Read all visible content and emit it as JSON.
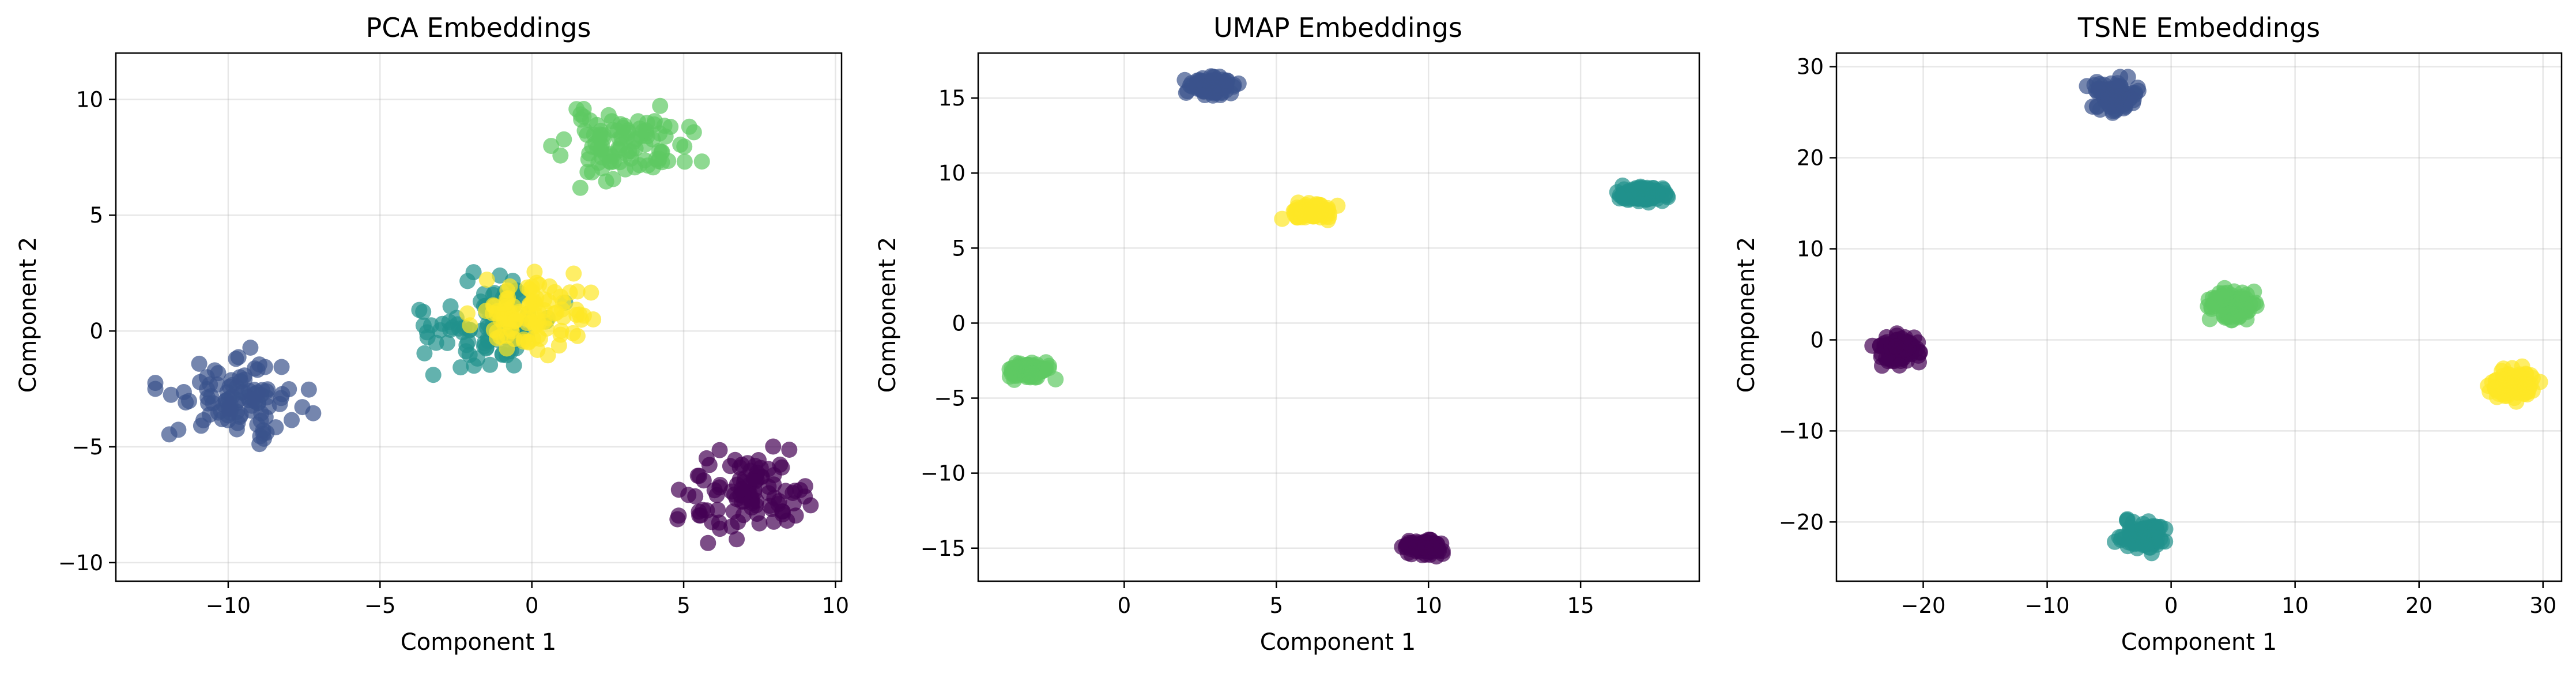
{
  "palette": {
    "cluster0": "#440154",
    "cluster1": "#3b528b",
    "cluster2": "#21918c",
    "cluster3": "#5ec962",
    "cluster4": "#fde725"
  },
  "chart_data": [
    {
      "type": "scatter",
      "title": "PCA Embeddings",
      "xlabel": "Component 1",
      "ylabel": "Component 2",
      "xlim": [
        -13.7,
        10.2
      ],
      "ylim": [
        -10.8,
        12.0
      ],
      "xticks": [
        -10,
        -5,
        0,
        5,
        10
      ],
      "yticks": [
        -10,
        -5,
        0,
        5,
        10
      ],
      "grid": true,
      "legend": "none",
      "marker_opacity": 0.7,
      "clusters": [
        {
          "color_key": "cluster3",
          "center": [
            3.0,
            8.0
          ],
          "spread": [
            1.0,
            0.7
          ],
          "count": 100,
          "seed": 11
        },
        {
          "color_key": "cluster1",
          "center": [
            -9.8,
            -2.8
          ],
          "spread": [
            1.0,
            0.8
          ],
          "count": 100,
          "seed": 22
        },
        {
          "color_key": "cluster2",
          "center": [
            -1.5,
            0.2
          ],
          "spread": [
            1.0,
            0.9
          ],
          "count": 100,
          "seed": 33
        },
        {
          "color_key": "cluster4",
          "center": [
            -0.2,
            0.6
          ],
          "spread": [
            1.0,
            0.8
          ],
          "count": 100,
          "seed": 44
        },
        {
          "color_key": "cluster0",
          "center": [
            7.0,
            -7.0
          ],
          "spread": [
            0.9,
            0.9
          ],
          "count": 100,
          "seed": 55
        }
      ]
    },
    {
      "type": "scatter",
      "title": "UMAP Embeddings",
      "xlabel": "Component 1",
      "ylabel": "Component 2",
      "xlim": [
        -4.8,
        18.9
      ],
      "ylim": [
        -17.2,
        18.0
      ],
      "xticks": [
        0,
        5,
        10,
        15
      ],
      "yticks": [
        -15,
        -10,
        -5,
        0,
        5,
        10,
        15
      ],
      "grid": true,
      "legend": "none",
      "marker_opacity": 0.7,
      "clusters": [
        {
          "color_key": "cluster1",
          "center": [
            2.9,
            15.8
          ],
          "spread": [
            0.35,
            0.25
          ],
          "count": 100,
          "seed": 66
        },
        {
          "color_key": "cluster4",
          "center": [
            6.1,
            7.4
          ],
          "spread": [
            0.35,
            0.25
          ],
          "count": 100,
          "seed": 77
        },
        {
          "color_key": "cluster2",
          "center": [
            17.1,
            8.6
          ],
          "spread": [
            0.35,
            0.25
          ],
          "count": 100,
          "seed": 88
        },
        {
          "color_key": "cluster3",
          "center": [
            -3.1,
            -3.2
          ],
          "spread": [
            0.35,
            0.25
          ],
          "count": 100,
          "seed": 99
        },
        {
          "color_key": "cluster0",
          "center": [
            9.9,
            -14.9
          ],
          "spread": [
            0.35,
            0.25
          ],
          "count": 100,
          "seed": 111
        }
      ]
    },
    {
      "type": "scatter",
      "title": "TSNE Embeddings",
      "xlabel": "Component 1",
      "ylabel": "Component 2",
      "xlim": [
        -27.0,
        31.5
      ],
      "ylim": [
        -26.5,
        31.5
      ],
      "xticks": [
        -20,
        -10,
        0,
        10,
        20,
        30
      ],
      "yticks": [
        -20,
        -10,
        0,
        10,
        20,
        30
      ],
      "grid": true,
      "legend": "none",
      "marker_opacity": 0.7,
      "clusters": [
        {
          "color_key": "cluster1",
          "center": [
            -4.5,
            26.8
          ],
          "spread": [
            0.9,
            0.8
          ],
          "count": 100,
          "seed": 122
        },
        {
          "color_key": "cluster3",
          "center": [
            5.0,
            3.8
          ],
          "spread": [
            0.9,
            0.8
          ],
          "count": 100,
          "seed": 133
        },
        {
          "color_key": "cluster0",
          "center": [
            -22.0,
            -1.2
          ],
          "spread": [
            0.9,
            0.8
          ],
          "count": 100,
          "seed": 144
        },
        {
          "color_key": "cluster4",
          "center": [
            27.5,
            -5.0
          ],
          "spread": [
            0.9,
            0.8
          ],
          "count": 100,
          "seed": 155
        },
        {
          "color_key": "cluster2",
          "center": [
            -2.2,
            -21.5
          ],
          "spread": [
            0.9,
            0.8
          ],
          "count": 100,
          "seed": 166
        }
      ]
    }
  ]
}
